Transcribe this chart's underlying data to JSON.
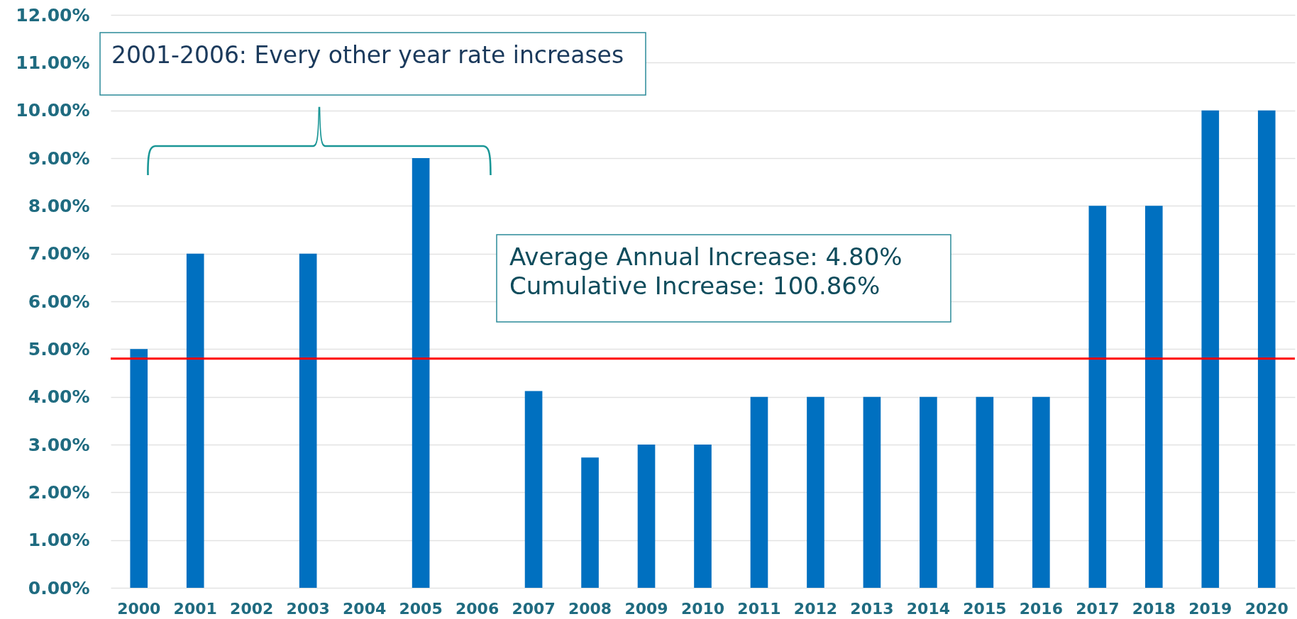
{
  "chart_data": {
    "type": "bar",
    "categories": [
      "2000",
      "2001",
      "2002",
      "2003",
      "2004",
      "2005",
      "2006",
      "2007",
      "2008",
      "2009",
      "2010",
      "2011",
      "2012",
      "2013",
      "2014",
      "2015",
      "2016",
      "2017",
      "2018",
      "2019",
      "2020"
    ],
    "series": [
      {
        "color": "#0070c0",
        "values": [
          5,
          7,
          0,
          7,
          0,
          9,
          0,
          4.12,
          2.73,
          3,
          3,
          4,
          4,
          4,
          4,
          4,
          4,
          8,
          8,
          10,
          10
        ]
      }
    ],
    "ref_lines": [
      {
        "axis": "y",
        "value": 4.8,
        "color": "#ff0000"
      }
    ],
    "ylim": [
      0,
      12
    ],
    "yticks": [
      {
        "value": 0,
        "label": "0.00%"
      },
      {
        "value": 1,
        "label": "1.00%"
      },
      {
        "value": 2,
        "label": "2.00%"
      },
      {
        "value": 3,
        "label": "3.00%"
      },
      {
        "value": 4,
        "label": "4.00%"
      },
      {
        "value": 5,
        "label": "5.00%"
      },
      {
        "value": 6,
        "label": "6.00%"
      },
      {
        "value": 7,
        "label": "7.00%"
      },
      {
        "value": 8,
        "label": "8.00%"
      },
      {
        "value": 9,
        "label": "9.00%"
      },
      {
        "value": 10,
        "label": "10.00%"
      },
      {
        "value": 11,
        "label": "11.00%"
      },
      {
        "value": 12,
        "label": "12.00%"
      }
    ],
    "grid": "y",
    "annotations": [
      "2001-2006: Every other year rate increases",
      "Average Annual Increase: 4.80%\nCumulative Increase: 100.86%"
    ]
  }
}
